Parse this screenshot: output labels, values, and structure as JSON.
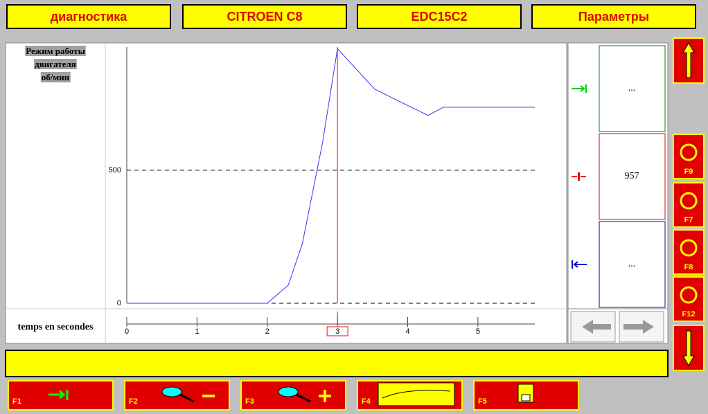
{
  "header": {
    "tabs": [
      "диагностика",
      "CITROEN C8",
      "EDC15C2",
      "Параметры"
    ]
  },
  "chart_data": {
    "type": "line",
    "ylabel": [
      "Режим работы",
      "двигателя",
      "об/мин"
    ],
    "xlabel": "temps en secondes",
    "x": [
      0,
      2,
      2.3,
      2.5,
      2.79,
      3,
      3.53,
      3.81,
      4.29,
      4.51,
      5.81
    ],
    "series": [
      {
        "color": "#3333ff",
        "values": [
          0,
          0,
          68,
          224,
          607,
          957,
          805,
          768,
          706,
          737,
          737
        ]
      }
    ],
    "xlim": [
      0,
      5.81
    ],
    "ylim": [
      0,
      963
    ],
    "xticks": [
      0,
      1,
      2,
      3,
      4,
      5
    ],
    "yticks": [
      0,
      500
    ],
    "grid": true,
    "cursor_x": 3,
    "cursor_color": "#ff0000"
  },
  "panel": {
    "values": [
      "...",
      "957",
      "..."
    ]
  },
  "side_keys": [
    "F9",
    "F7",
    "F8",
    "F12"
  ],
  "function_keys": [
    "F1",
    "F2",
    "F3",
    "F4",
    "F5"
  ]
}
